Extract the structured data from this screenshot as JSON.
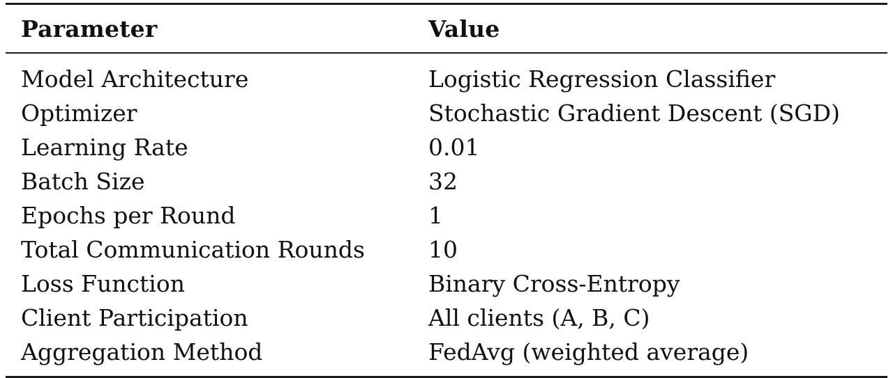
{
  "table": {
    "headers": {
      "parameter": "Parameter",
      "value": "Value"
    },
    "rows": [
      {
        "parameter": "Model Architecture",
        "value": "Logistic Regression Classifier"
      },
      {
        "parameter": "Optimizer",
        "value": "Stochastic Gradient Descent (SGD)"
      },
      {
        "parameter": "Learning Rate",
        "value": "0.01"
      },
      {
        "parameter": "Batch Size",
        "value": "32"
      },
      {
        "parameter": "Epochs per Round",
        "value": "1"
      },
      {
        "parameter": "Total Communication Rounds",
        "value": "10"
      },
      {
        "parameter": "Loss Function",
        "value": "Binary Cross-Entropy"
      },
      {
        "parameter": "Client Participation",
        "value": "All clients (A, B, C)"
      },
      {
        "parameter": "Aggregation Method",
        "value": "FedAvg (weighted average)"
      }
    ]
  }
}
